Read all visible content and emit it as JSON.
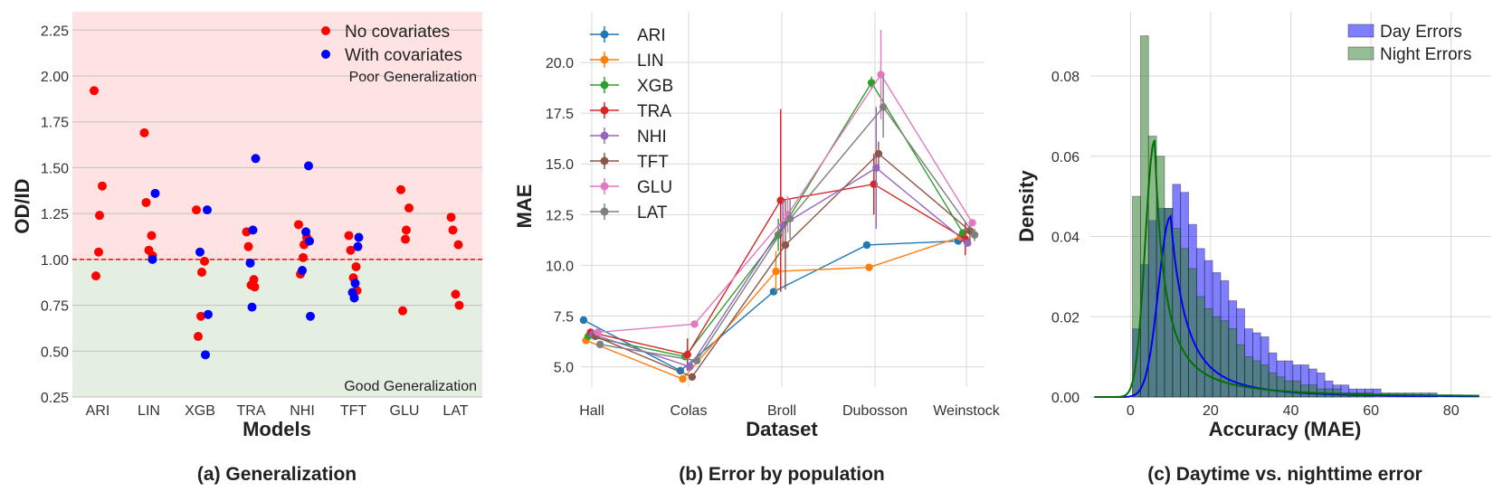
{
  "panels": {
    "generalization": {
      "caption": "(a) Generalization",
      "chart_data": {
        "type": "scatter",
        "xlabel": "Models",
        "ylabel": "OD/ID",
        "categories": [
          "ARI",
          "LIN",
          "XGB",
          "TRA",
          "NHI",
          "TFT",
          "GLU",
          "LAT"
        ],
        "ylim": [
          0.25,
          2.35
        ],
        "yticks": [
          "0.25",
          "0.50",
          "0.75",
          "1.00",
          "1.25",
          "1.50",
          "1.75",
          "2.00",
          "2.25"
        ],
        "threshold": 1.0,
        "regions": {
          "upper_label": "Poor Generalization",
          "lower_label": "Good Generalization",
          "upper_color": "#ffe3e3",
          "lower_color": "#e4efe1"
        },
        "series": [
          {
            "name": "No covariates",
            "color": "#ff0000",
            "points": [
              [
                "ARI",
                1.92
              ],
              [
                "ARI",
                1.4
              ],
              [
                "ARI",
                1.24
              ],
              [
                "ARI",
                1.04
              ],
              [
                "ARI",
                0.91
              ],
              [
                "LIN",
                1.69
              ],
              [
                "LIN",
                1.31
              ],
              [
                "LIN",
                1.13
              ],
              [
                "LIN",
                1.05
              ],
              [
                "LIN",
                1.02
              ],
              [
                "XGB",
                1.27
              ],
              [
                "XGB",
                0.99
              ],
              [
                "XGB",
                0.93
              ],
              [
                "XGB",
                0.69
              ],
              [
                "XGB",
                0.58
              ],
              [
                "TRA",
                1.15
              ],
              [
                "TRA",
                1.07
              ],
              [
                "TRA",
                0.89
              ],
              [
                "TRA",
                0.86
              ],
              [
                "TRA",
                0.85
              ],
              [
                "NHI",
                1.19
              ],
              [
                "NHI",
                1.12
              ],
              [
                "NHI",
                1.08
              ],
              [
                "NHI",
                1.01
              ],
              [
                "NHI",
                0.92
              ],
              [
                "TFT",
                1.13
              ],
              [
                "TFT",
                1.05
              ],
              [
                "TFT",
                0.96
              ],
              [
                "TFT",
                0.9
              ],
              [
                "TFT",
                0.83
              ],
              [
                "GLU",
                1.38
              ],
              [
                "GLU",
                1.28
              ],
              [
                "GLU",
                1.16
              ],
              [
                "GLU",
                1.11
              ],
              [
                "GLU",
                0.72
              ],
              [
                "LAT",
                1.23
              ],
              [
                "LAT",
                1.16
              ],
              [
                "LAT",
                1.08
              ],
              [
                "LAT",
                0.81
              ],
              [
                "LAT",
                0.75
              ]
            ]
          },
          {
            "name": "With covariates",
            "color": "#0000ff",
            "points": [
              [
                "LIN",
                1.36
              ],
              [
                "LIN",
                1.0
              ],
              [
                "XGB",
                1.27
              ],
              [
                "XGB",
                1.04
              ],
              [
                "XGB",
                0.7
              ],
              [
                "XGB",
                0.48
              ],
              [
                "TRA",
                1.55
              ],
              [
                "TRA",
                1.16
              ],
              [
                "TRA",
                0.98
              ],
              [
                "TRA",
                0.74
              ],
              [
                "NHI",
                1.51
              ],
              [
                "NHI",
                1.15
              ],
              [
                "NHI",
                1.1
              ],
              [
                "NHI",
                0.94
              ],
              [
                "NHI",
                0.69
              ],
              [
                "TFT",
                1.12
              ],
              [
                "TFT",
                1.07
              ],
              [
                "TFT",
                0.87
              ],
              [
                "TFT",
                0.82
              ],
              [
                "TFT",
                0.79
              ]
            ]
          }
        ],
        "legend": [
          "No covariates",
          "With covariates"
        ]
      }
    },
    "error_by_population": {
      "caption": "(b) Error by population",
      "chart_data": {
        "type": "line",
        "xlabel": "Dataset",
        "ylabel": "MAE",
        "categories": [
          "Hall",
          "Colas",
          "Broll",
          "Dubosson",
          "Weinstock"
        ],
        "ylim": [
          4.0,
          22.5
        ],
        "yticks": [
          "5.0",
          "7.5",
          "10.0",
          "12.5",
          "15.0",
          "17.5",
          "20.0"
        ],
        "series": [
          {
            "name": "ARI",
            "color": "#1f77b4",
            "values": [
              7.3,
              4.8,
              8.7,
              11.0,
              11.2
            ],
            "err": [
              0,
              0,
              0,
              0,
              0
            ]
          },
          {
            "name": "LIN",
            "color": "#ff7f0e",
            "values": [
              6.3,
              4.4,
              9.7,
              9.9,
              11.4
            ],
            "err": [
              0,
              0,
              1.0,
              0,
              0
            ]
          },
          {
            "name": "XGB",
            "color": "#2ca02c",
            "values": [
              6.5,
              5.5,
              11.5,
              19.0,
              11.6
            ],
            "err": [
              0,
              0,
              0.8,
              0.3,
              0
            ]
          },
          {
            "name": "TRA",
            "color": "#d62728",
            "values": [
              6.7,
              5.6,
              13.2,
              14.0,
              11.3
            ],
            "err": [
              0,
              0.8,
              4.5,
              1.5,
              0.8
            ]
          },
          {
            "name": "NHI",
            "color": "#9467bd",
            "values": [
              6.6,
              5.0,
              12.0,
              14.8,
              11.1
            ],
            "err": [
              0,
              0,
              1.2,
              3.0,
              0
            ]
          },
          {
            "name": "TFT",
            "color": "#8c564b",
            "values": [
              6.5,
              4.5,
              11.0,
              15.5,
              11.7
            ],
            "err": [
              0,
              0,
              2.2,
              0.6,
              0.5
            ]
          },
          {
            "name": "GLU",
            "color": "#e377c2",
            "values": [
              6.7,
              7.1,
              12.5,
              19.4,
              12.1
            ],
            "err": [
              0,
              0,
              0.9,
              2.2,
              0
            ]
          },
          {
            "name": "LAT",
            "color": "#7f7f7f",
            "values": [
              6.1,
              5.3,
              12.3,
              17.8,
              11.5
            ],
            "err": [
              0,
              0,
              1.0,
              1.5,
              0.3
            ]
          }
        ]
      }
    },
    "daytime_vs_nighttime": {
      "caption": "(c) Daytime vs. nighttime error",
      "chart_data": {
        "type": "histogram",
        "xlabel": "Accuracy (MAE)",
        "ylabel": "Density",
        "xlim": [
          -10,
          90
        ],
        "ylim": [
          0,
          0.096
        ],
        "xticks": [
          0,
          20,
          40,
          60,
          80
        ],
        "yticks": [
          "0.00",
          "0.02",
          "0.04",
          "0.06",
          "0.08"
        ],
        "series": [
          {
            "name": "Day Errors",
            "color": "#0000ff",
            "kde_color": "#0000ff",
            "bin_start": 0.5,
            "bin_width": 2,
            "densities": [
              0.017,
              0.033,
              0.044,
              0.047,
              0.047,
              0.053,
              0.051,
              0.043,
              0.037,
              0.034,
              0.031,
              0.029,
              0.024,
              0.022,
              0.017,
              0.016,
              0.015,
              0.011,
              0.009,
              0.009,
              0.008,
              0.008,
              0.007,
              0.006,
              0.004,
              0.003,
              0.003,
              0.002,
              0.002,
              0.002,
              0.002,
              0.001,
              0.001,
              0.001,
              0.001,
              0.001,
              0.001,
              0.001
            ]
          },
          {
            "name": "Night Errors",
            "color": "#2e7d2e",
            "kde_color": "#007000",
            "bin_start": 0.5,
            "bin_width": 2,
            "densities": [
              0.05,
              0.09,
              0.065,
              0.06,
              0.047,
              0.042,
              0.037,
              0.032,
              0.025,
              0.022,
              0.02,
              0.019,
              0.017,
              0.013,
              0.01,
              0.009,
              0.008,
              0.006,
              0.005,
              0.004,
              0.004,
              0.003,
              0.003,
              0.002,
              0.002,
              0.002,
              0.001,
              0.001,
              0.001,
              0.001
            ]
          }
        ],
        "kde": {
          "day": {
            "peak_x": 10,
            "peak_y": 0.045
          },
          "night": {
            "peak_x": 6,
            "peak_y": 0.064
          }
        },
        "legend": [
          "Day Errors",
          "Night Errors"
        ]
      }
    }
  }
}
